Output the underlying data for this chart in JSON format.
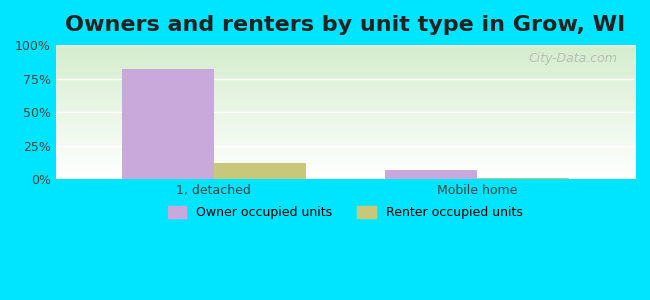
{
  "title": "Owners and renters by unit type in Grow, WI",
  "categories": [
    "1, detached",
    "Mobile home"
  ],
  "series": [
    {
      "name": "Owner occupied units",
      "color": "#c9a8dc",
      "values": [
        82,
        7
      ]
    },
    {
      "name": "Renter occupied units",
      "color": "#c8c87a",
      "values": [
        12,
        1
      ]
    }
  ],
  "ylim": [
    0,
    100
  ],
  "yticks": [
    0,
    25,
    50,
    75,
    100
  ],
  "ytick_labels": [
    "0%",
    "25%",
    "50%",
    "75%",
    "100%"
  ],
  "bar_width": 0.35,
  "background_outer": "#00e5ff",
  "background_inner_top": "#ffffff",
  "background_inner_bottom": "#d4edcc",
  "watermark": "City-Data.com",
  "title_fontsize": 16,
  "axis_label_fontsize": 9,
  "legend_fontsize": 9
}
